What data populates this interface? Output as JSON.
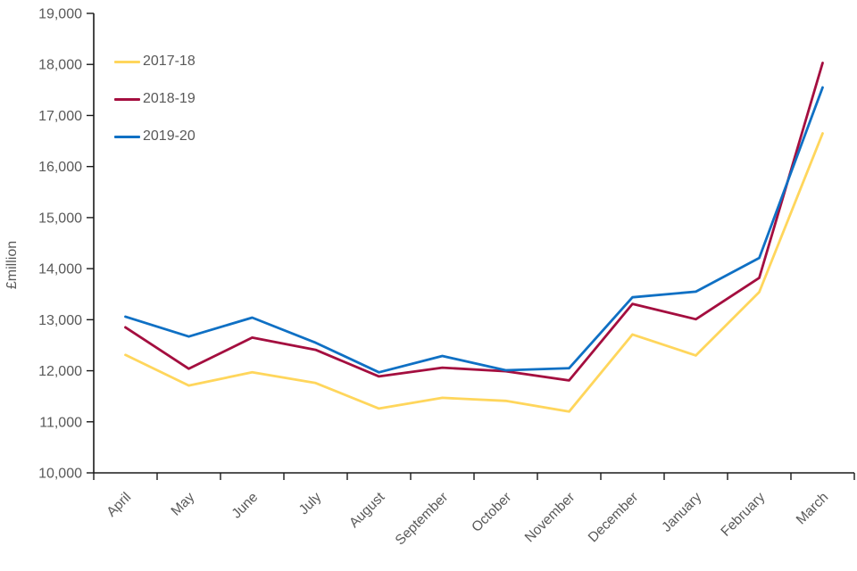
{
  "chart_data": {
    "type": "line",
    "title": "",
    "xlabel": "",
    "ylabel": "£million",
    "ylim": [
      10000,
      19000
    ],
    "ytick_step": 1000,
    "grid": false,
    "legend_position": "top-left-inside",
    "axis_color": "#1a1a1a",
    "label_color": "#595959",
    "categories": [
      "April",
      "May",
      "June",
      "July",
      "August",
      "September",
      "October",
      "November",
      "December",
      "January",
      "February",
      "March"
    ],
    "series": [
      {
        "name": "2017-18",
        "color": "#FFD65C",
        "values": [
          12310,
          11710,
          11970,
          11760,
          11260,
          11470,
          11410,
          11200,
          12710,
          12300,
          13540,
          16650
        ]
      },
      {
        "name": "2018-19",
        "color": "#A40E3F",
        "values": [
          12850,
          12040,
          12650,
          12410,
          11890,
          12060,
          11990,
          11810,
          13310,
          13010,
          13820,
          18030
        ]
      },
      {
        "name": "2019-20",
        "color": "#0F70C4",
        "values": [
          13060,
          12670,
          13040,
          12550,
          11970,
          12290,
          12010,
          12050,
          13440,
          13550,
          14210,
          17550
        ]
      }
    ]
  }
}
